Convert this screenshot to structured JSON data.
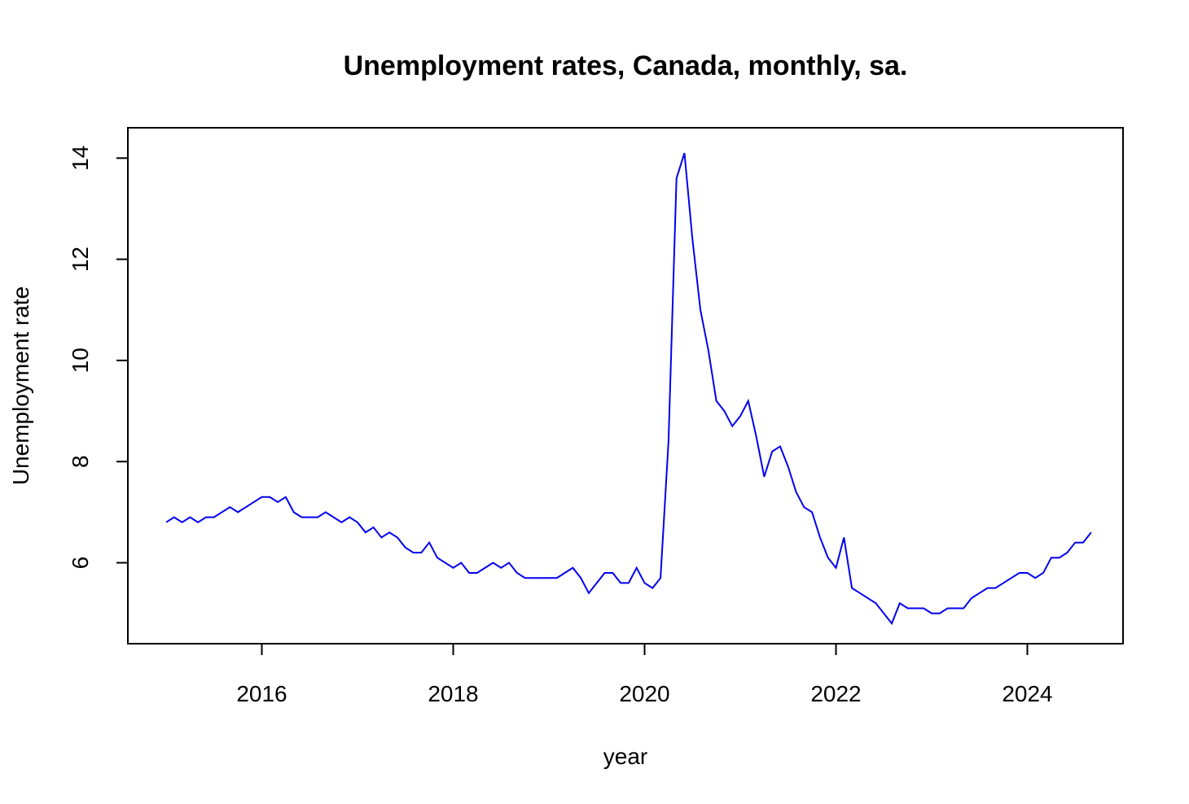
{
  "chart_data": {
    "type": "line",
    "title": "Unemployment rates, Canada, monthly, sa.",
    "xlabel": "year",
    "ylabel": "Unemployment rate",
    "xlim": [
      2014.6,
      2025.0
    ],
    "ylim": [
      4.4,
      14.6
    ],
    "x_ticks": [
      2016,
      2018,
      2020,
      2022,
      2024
    ],
    "x_tick_labels": [
      "2016",
      "2018",
      "2020",
      "2022",
      "2024"
    ],
    "y_ticks": [
      6,
      8,
      10,
      12,
      14
    ],
    "y_tick_labels": [
      "6",
      "8",
      "10",
      "12",
      "14"
    ],
    "grid": false,
    "x_start": "2015-01",
    "x_step": "1 month",
    "series": [
      {
        "color": "#0000ee",
        "values": [
          6.8,
          6.9,
          6.8,
          6.9,
          6.8,
          6.9,
          6.9,
          7.0,
          7.1,
          7.0,
          7.1,
          7.2,
          7.3,
          7.3,
          7.2,
          7.3,
          7.0,
          6.9,
          6.9,
          6.9,
          7.0,
          6.9,
          6.8,
          6.9,
          6.8,
          6.6,
          6.7,
          6.5,
          6.6,
          6.5,
          6.3,
          6.2,
          6.2,
          6.4,
          6.1,
          6.0,
          5.9,
          6.0,
          5.8,
          5.8,
          5.9,
          6.0,
          5.9,
          6.0,
          5.8,
          5.7,
          5.7,
          5.7,
          5.7,
          5.7,
          5.8,
          5.9,
          5.7,
          5.4,
          5.6,
          5.8,
          5.8,
          5.6,
          5.6,
          5.9,
          5.6,
          5.5,
          5.7,
          8.4,
          13.6,
          14.1,
          12.4,
          11.0,
          10.2,
          9.2,
          9.0,
          8.7,
          8.9,
          9.2,
          8.5,
          7.7,
          8.2,
          8.3,
          7.9,
          7.4,
          7.1,
          7.0,
          6.5,
          6.1,
          5.9,
          6.5,
          5.5,
          5.4,
          5.3,
          5.2,
          5.0,
          4.8,
          5.2,
          5.1,
          5.1,
          5.1,
          5.0,
          5.0,
          5.1,
          5.1,
          5.1,
          5.3,
          5.4,
          5.5,
          5.5,
          5.6,
          5.7,
          5.8,
          5.8,
          5.7,
          5.8,
          6.1,
          6.1,
          6.2,
          6.4,
          6.4,
          6.6
        ]
      }
    ]
  }
}
